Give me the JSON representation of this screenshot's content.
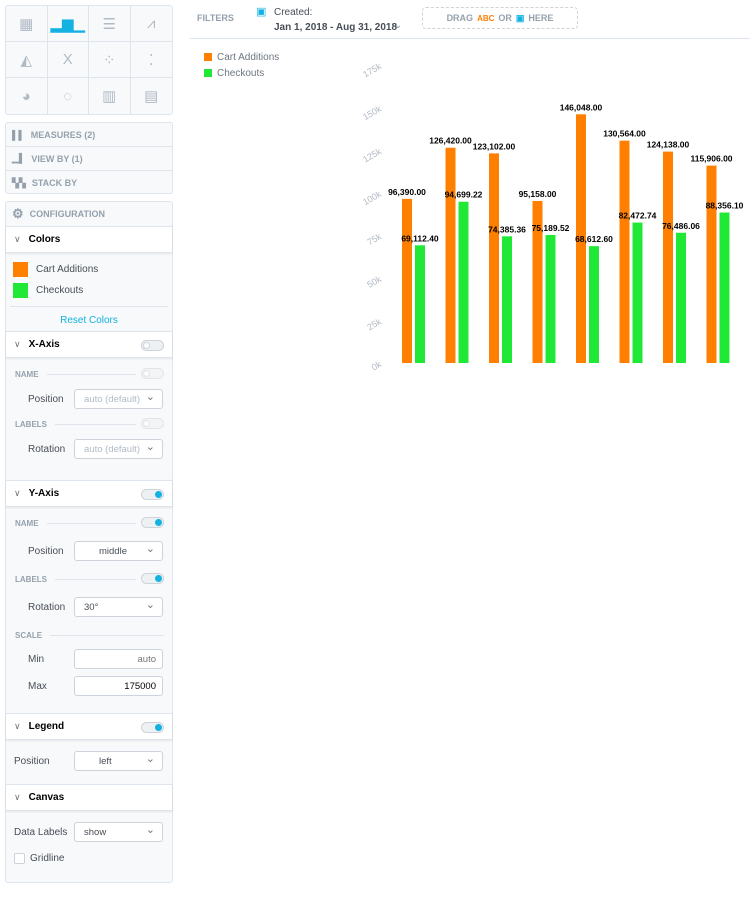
{
  "chart_types": [
    "table-icon",
    "column-icon",
    "bar-icon",
    "line-icon",
    "area-icon",
    "headline-icon",
    "scatter-icon",
    "bubble-icon",
    "pie-icon",
    "donut-icon",
    "treemap-icon",
    "heatmap-icon"
  ],
  "buckets": {
    "measures": "MEASURES (2)",
    "view_by": "VIEW BY (1)",
    "stack_by": "STACK BY"
  },
  "config": {
    "title": "CONFIGURATION",
    "colors": {
      "title": "Colors",
      "items": [
        {
          "label": "Cart Additions",
          "color": "#ff7f00"
        },
        {
          "label": "Checkouts",
          "color": "#1fe836"
        }
      ],
      "reset": "Reset Colors"
    },
    "xaxis": {
      "title": "X-Axis",
      "enabled": false,
      "name_label": "NAME",
      "position_label": "Position",
      "position_value": "auto (default)",
      "labels_label": "LABELS",
      "rotation_label": "Rotation",
      "rotation_value": "auto (default)"
    },
    "yaxis": {
      "title": "Y-Axis",
      "enabled": true,
      "name_label": "NAME",
      "position_label": "Position",
      "position_value": "middle",
      "labels_label": "LABELS",
      "rotation_label": "Rotation",
      "rotation_value": "30°",
      "scale_label": "SCALE",
      "min_label": "Min",
      "min_placeholder": "auto",
      "max_label": "Max",
      "max_value": "175000"
    },
    "legend": {
      "title": "Legend",
      "enabled": true,
      "position_label": "Position",
      "position_value": "left"
    },
    "canvas": {
      "title": "Canvas",
      "data_labels_label": "Data Labels",
      "data_labels_value": "show",
      "gridline_label": "Gridline",
      "gridline_checked": false
    }
  },
  "filters": {
    "label": "FILTERS",
    "created_label": "Created:",
    "date_range": "Jan 1, 2018 - Aug 31, 2018",
    "drop_drag": "DRAG",
    "drop_abc": "ABC",
    "drop_or": "OR",
    "drop_here": "HERE"
  },
  "chart_data": {
    "type": "bar",
    "categories": [
      "",
      "",
      "",
      "",
      "",
      "",
      "",
      ""
    ],
    "series": [
      {
        "name": "Cart Additions",
        "color": "#ff7f00",
        "values": [
          96390.0,
          126420.0,
          123102.0,
          95158.0,
          146048.0,
          130564.0,
          124138.0,
          115906.0
        ],
        "labels": [
          "96,390.00",
          "126,420.00",
          "123,102.00",
          "95,158.00",
          "146,048.00",
          "130,564.00",
          "124,138.00",
          "115,906.00"
        ]
      },
      {
        "name": "Checkouts",
        "color": "#1fe836",
        "values": [
          69112.4,
          94699.22,
          74385.36,
          75189.52,
          68612.6,
          82472.74,
          76486.06,
          88356.1
        ],
        "labels": [
          "69,112.40",
          "94,699.22",
          "74,385.36",
          "75,189.52",
          "68,612.60",
          "82,472.74",
          "76,486.06",
          "88,356.10"
        ]
      }
    ],
    "yticks": [
      "0k",
      "25k",
      "50k",
      "75k",
      "100k",
      "125k",
      "150k",
      "175k"
    ],
    "ylim": [
      0,
      175000
    ],
    "grid": false,
    "legend_position": "left"
  }
}
